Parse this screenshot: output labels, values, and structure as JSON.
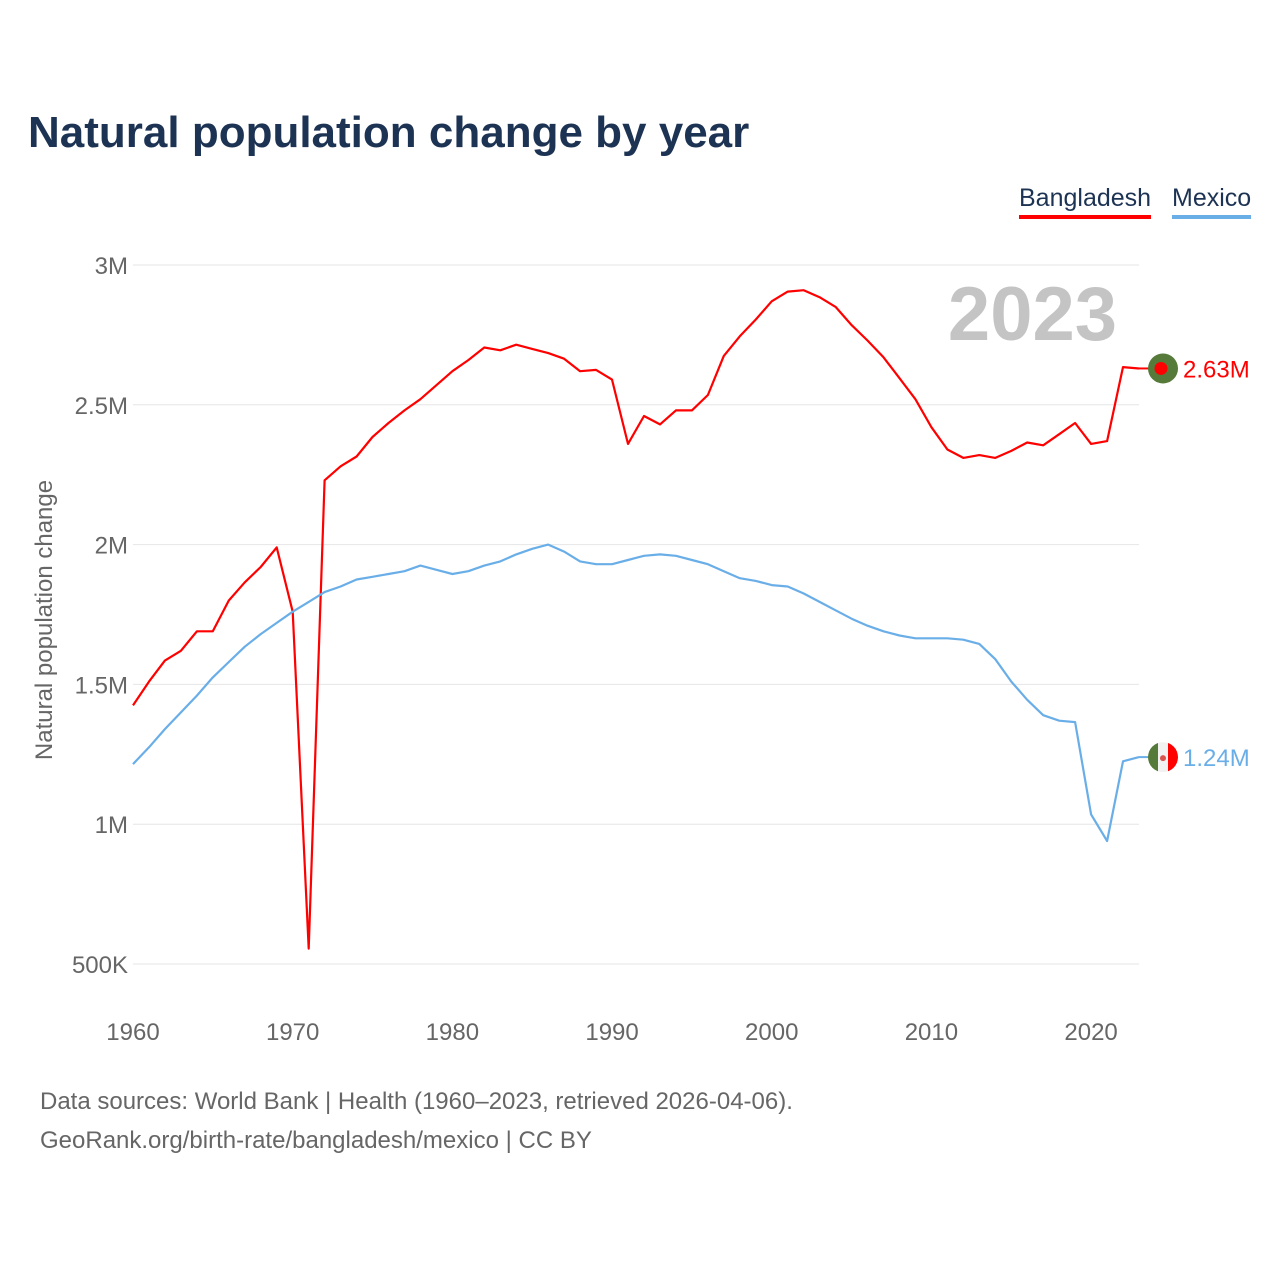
{
  "chart_data": {
    "type": "line",
    "title": "Natural population change by year",
    "xlabel": "",
    "ylabel": "Natural population change",
    "xlim": [
      1960,
      2023
    ],
    "ylim": [
      500000,
      3000000
    ],
    "x_ticks": [
      "1960",
      "1970",
      "1980",
      "1990",
      "2000",
      "2010",
      "2020"
    ],
    "y_ticks": [
      {
        "v": 500000,
        "label": "500K"
      },
      {
        "v": 1000000,
        "label": "1M"
      },
      {
        "v": 1500000,
        "label": "1.5M"
      },
      {
        "v": 2000000,
        "label": "2M"
      },
      {
        "v": 2500000,
        "label": "2.5M"
      },
      {
        "v": 3000000,
        "label": "3M"
      }
    ],
    "grid": true,
    "legend_position": "top-right",
    "year_label": "2023",
    "x_start": 1960,
    "series": [
      {
        "name": "Bangladesh",
        "color": "#ff0000",
        "end_label": "2.63M",
        "flag": "bangladesh-flag",
        "values": [
          1.425,
          1.51,
          1.585,
          1.62,
          1.69,
          1.69,
          1.8,
          1.865,
          1.92,
          1.99,
          1.76,
          0.555,
          2.23,
          2.28,
          2.315,
          2.385,
          2.435,
          2.48,
          2.52,
          2.57,
          2.62,
          2.66,
          2.705,
          2.695,
          2.715,
          2.7,
          2.685,
          2.665,
          2.62,
          2.625,
          2.59,
          2.36,
          2.46,
          2.43,
          2.48,
          2.48,
          2.535,
          2.675,
          2.745,
          2.805,
          2.87,
          2.905,
          2.91,
          2.885,
          2.85,
          2.785,
          2.73,
          2.67,
          2.595,
          2.52,
          2.42,
          2.34,
          2.31,
          2.32,
          2.31,
          2.335,
          2.365,
          2.355,
          2.395,
          2.435,
          2.36,
          2.37,
          2.635,
          2.63
        ]
      },
      {
        "name": "Mexico",
        "color": "#6aaee8",
        "end_label": "1.24M",
        "flag": "mexico-flag",
        "values": [
          1.215,
          1.275,
          1.34,
          1.4,
          1.46,
          1.525,
          1.58,
          1.635,
          1.68,
          1.72,
          1.76,
          1.795,
          1.83,
          1.85,
          1.875,
          1.885,
          1.895,
          1.905,
          1.925,
          1.91,
          1.895,
          1.905,
          1.925,
          1.94,
          1.965,
          1.985,
          2.0,
          1.975,
          1.94,
          1.93,
          1.93,
          1.945,
          1.96,
          1.965,
          1.96,
          1.945,
          1.93,
          1.905,
          1.88,
          1.87,
          1.855,
          1.85,
          1.825,
          1.795,
          1.765,
          1.735,
          1.71,
          1.69,
          1.675,
          1.665,
          1.665,
          1.665,
          1.66,
          1.645,
          1.59,
          1.51,
          1.445,
          1.39,
          1.37,
          1.365,
          1.035,
          0.94,
          1.225,
          1.24
        ]
      }
    ],
    "value_unit": "millions"
  },
  "footer": {
    "line1": "Data sources: World Bank | Health (1960–2023, retrieved 2026-04-06).",
    "line2": "GeoRank.org/birth-rate/bangladesh/mexico | CC BY"
  }
}
